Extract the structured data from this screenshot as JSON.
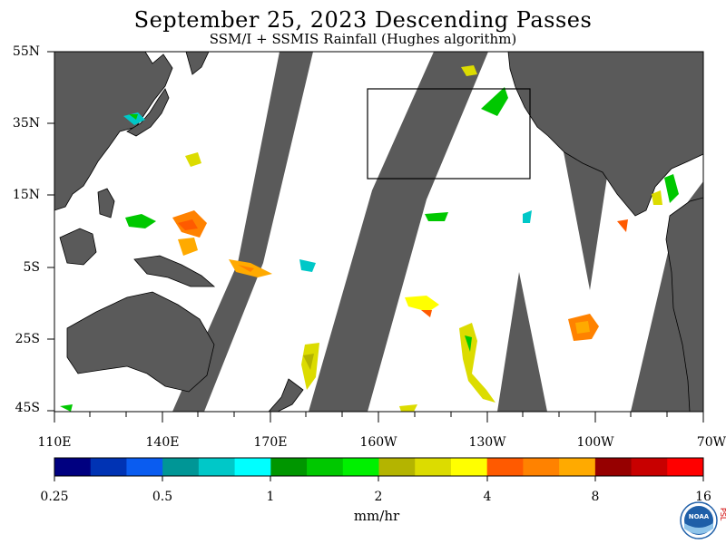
{
  "title": "September 25, 2023  Descending Passes",
  "subtitle": "SSM/I + SSMIS Rainfall (Hughes algorithm)",
  "map": {
    "lat_labels": [
      "55N",
      "35N",
      "15N",
      "5S",
      "25S",
      "45S"
    ],
    "lon_labels": [
      "110E",
      "140E",
      "170E",
      "160W",
      "130W",
      "100W",
      "70W"
    ],
    "land_color": "#5a5a5a",
    "ocean_color": "#ffffff",
    "gap_color": "#5a5a5a"
  },
  "colorbar": {
    "colors": [
      "#000080",
      "#0033b4",
      "#0a5cf0",
      "#009696",
      "#00c8c8",
      "#00ffff",
      "#009600",
      "#00c800",
      "#00f000",
      "#b4b400",
      "#dcdc00",
      "#ffff00",
      "#ff5a00",
      "#ff8200",
      "#ffaa00",
      "#960000",
      "#c80000",
      "#ff0000"
    ],
    "tick_labels": [
      "0.25",
      "0.5",
      "1",
      "2",
      "4",
      "8",
      "16"
    ],
    "units": "mm/hr"
  },
  "logo": {
    "text": "NOAA",
    "side_text": "PSL"
  }
}
